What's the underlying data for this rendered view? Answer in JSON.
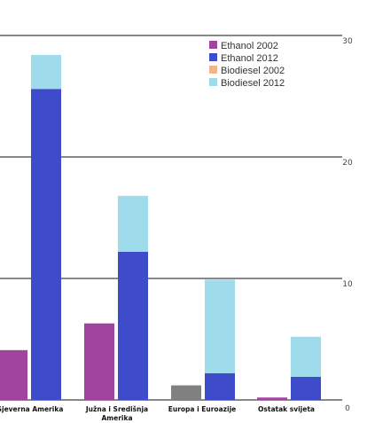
{
  "chart_data": {
    "type": "bar",
    "stacked_pairs": true,
    "categories": [
      {
        "lines": [
          "Sjeverna Amerika"
        ]
      },
      {
        "lines": [
          "Južna i Središnja",
          "Amerika"
        ]
      },
      {
        "lines": [
          "Europa i Euroazije"
        ]
      },
      {
        "lines": [
          "Ostatak svijeta"
        ]
      }
    ],
    "series": [
      {
        "name": "Ethanol 2002",
        "color": "#a044a0",
        "group": "2002",
        "values": [
          4.1,
          6.3,
          0.0,
          0.2
        ]
      },
      {
        "name": "Ethanol 2012",
        "color": "#3e4ccc",
        "group": "2012",
        "values": [
          25.6,
          12.2,
          2.2,
          1.9
        ]
      },
      {
        "name": "Biodiesel 2002",
        "color": "#f2b48a",
        "group": "2002",
        "values": [
          0.0,
          0.0,
          1.2,
          0.0
        ]
      },
      {
        "name": "Biodiesel 2012",
        "color": "#9edcec",
        "group": "2012",
        "values": [
          2.8,
          4.6,
          7.7,
          3.3
        ]
      }
    ],
    "europe_2002_color": "#808080",
    "y_ticks": [
      "0",
      "10",
      "20",
      "30"
    ],
    "ylim": [
      0,
      30
    ],
    "gridlines": true,
    "legend_position": "top-right",
    "title": "",
    "xlabel": "",
    "ylabel": ""
  }
}
